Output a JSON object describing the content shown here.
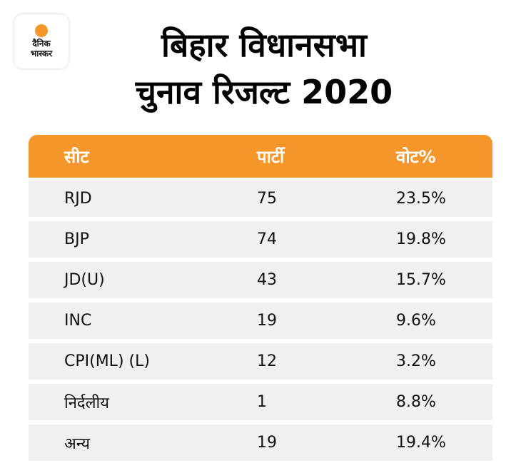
{
  "logo": {
    "line1": "दैनिक",
    "line2": "भास्कर",
    "accent": "#f5962a"
  },
  "title": {
    "line1": "बिहार विधानसभा",
    "line2": "चुनाव रिजल्ट 2020"
  },
  "table": {
    "header_color": "#f5962a",
    "row_color": "#f0f0f0",
    "headers": [
      "सीट",
      "पार्टी",
      "वोट%"
    ],
    "rows": [
      {
        "party": "RJD",
        "seats": "75",
        "vote": "23.5%"
      },
      {
        "party": "BJP",
        "seats": "74",
        "vote": "19.8%"
      },
      {
        "party": "JD(U)",
        "seats": "43",
        "vote": "15.7%"
      },
      {
        "party": "INC",
        "seats": "19",
        "vote": "9.6%"
      },
      {
        "party": "CPI(ML) (L)",
        "seats": "12",
        "vote": "3.2%"
      },
      {
        "party": "निर्दलीय",
        "seats": "1",
        "vote": "8.8%"
      },
      {
        "party": "अन्य",
        "seats": "19",
        "vote": "19.4%"
      }
    ]
  }
}
